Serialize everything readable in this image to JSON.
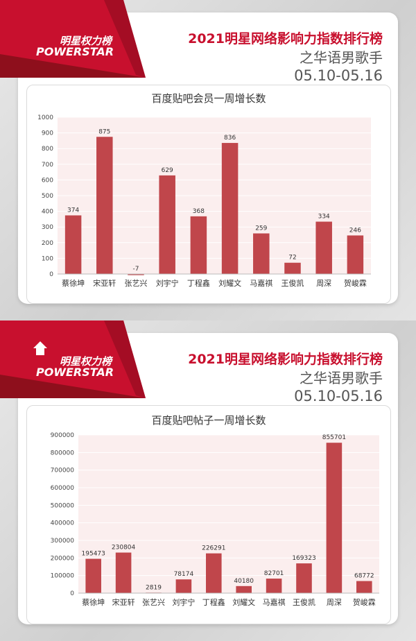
{
  "panels": [
    {
      "logo": {
        "cn": "明星权力榜",
        "en": "POWERSTAR"
      },
      "heading": {
        "line1": "2021明星网络影响力指数排行榜",
        "line2": "之华语男歌手",
        "line3": "05.10-05.16"
      }
    },
    {
      "logo": {
        "cn": "明星权力榜",
        "en": "POWERSTAR"
      },
      "heading": {
        "line1": "2021明星网络影响力指数排行榜",
        "line2": "之华语男歌手",
        "line3": "05.10-05.16"
      }
    }
  ],
  "chart_data": [
    {
      "type": "bar",
      "title": "百度贴吧会员一周增长数",
      "categories": [
        "蔡徐坤",
        "宋亚轩",
        "张艺兴",
        "刘宇宁",
        "丁程鑫",
        "刘耀文",
        "马嘉祺",
        "王俊凯",
        "周深",
        "贺峻霖"
      ],
      "values": [
        374,
        875,
        -7,
        629,
        368,
        836,
        259,
        72,
        334,
        246
      ],
      "ylim": [
        0,
        1000
      ],
      "yticks": [
        0,
        100,
        200,
        300,
        400,
        500,
        600,
        700,
        800,
        900,
        1000
      ],
      "grid": true,
      "bar_color": "#c0464b",
      "plot_bg": "#fbeeee"
    },
    {
      "type": "bar",
      "title": "百度贴吧帖子一周增长数",
      "categories": [
        "蔡徐坤",
        "宋亚轩",
        "张艺兴",
        "刘宇宁",
        "丁程鑫",
        "刘耀文",
        "马嘉祺",
        "王俊凯",
        "周深",
        "贺峻霖"
      ],
      "values": [
        195473,
        230804,
        2819,
        78174,
        226291,
        40180,
        82701,
        169323,
        855701,
        68772
      ],
      "ylim": [
        0,
        900000
      ],
      "yticks": [
        0,
        100000,
        200000,
        300000,
        400000,
        500000,
        600000,
        700000,
        800000,
        900000
      ],
      "grid": true,
      "bar_color": "#c0464b",
      "plot_bg": "#fbeeee"
    }
  ],
  "colors": {
    "brand_red": "#c8102e",
    "dark_red": "#8e0f1c",
    "text_gray": "#555555"
  }
}
